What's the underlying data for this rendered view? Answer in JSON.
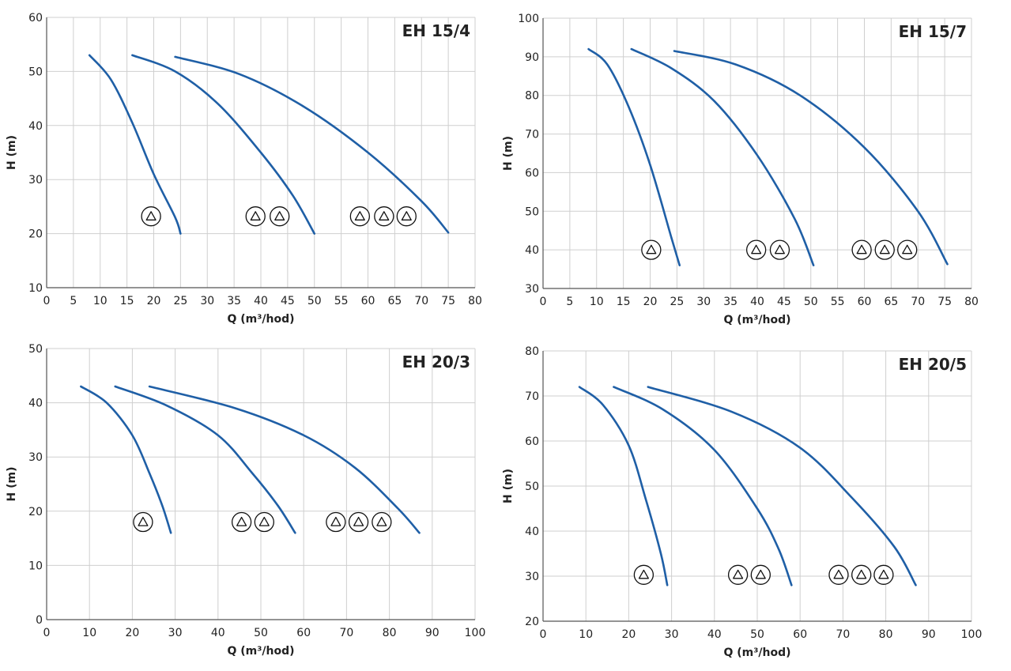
{
  "colors": {
    "curve": "#1f5fa6",
    "grid": "#cfcfcf",
    "axis": "#555555",
    "text": "#222222"
  },
  "icon": "pump-circle-triangle-icon",
  "chart_data": [
    {
      "type": "line",
      "title": "EH 15/4",
      "xlabel": "Q (m³/hod)",
      "ylabel": "H (m)",
      "xlim": [
        0,
        80
      ],
      "ylim": [
        10,
        60
      ],
      "xticks": [
        0,
        5,
        10,
        15,
        20,
        25,
        30,
        35,
        40,
        45,
        50,
        55,
        60,
        65,
        70,
        75,
        80
      ],
      "yticks": [
        10,
        20,
        30,
        40,
        50,
        60
      ],
      "series": [
        {
          "pumps": 1,
          "x": [
            8,
            12,
            16,
            20,
            24,
            25
          ],
          "y": [
            53,
            48.5,
            40.5,
            31,
            23,
            20
          ]
        },
        {
          "pumps": 2,
          "x": [
            16,
            24,
            32,
            40,
            46,
            50
          ],
          "y": [
            53,
            50,
            44,
            35,
            27,
            20
          ]
        },
        {
          "pumps": 3,
          "x": [
            24,
            36,
            48,
            60,
            70,
            75
          ],
          "y": [
            52.7,
            49.5,
            43.5,
            35,
            26,
            20.2
          ]
        }
      ],
      "pump_markers": [
        {
          "count": 1,
          "x": [
            19.5
          ],
          "y": 23.2
        },
        {
          "count": 2,
          "x": [
            39,
            43.5
          ],
          "y": 23.2
        },
        {
          "count": 3,
          "x": [
            58.5,
            63,
            67.2
          ],
          "y": 23.2
        }
      ]
    },
    {
      "type": "line",
      "title": "EH 15/7",
      "xlabel": "Q (m³/hod)",
      "ylabel": "H (m)",
      "xlim": [
        0,
        80
      ],
      "ylim": [
        30,
        100
      ],
      "xticks": [
        0,
        5,
        10,
        15,
        20,
        25,
        30,
        35,
        40,
        45,
        50,
        55,
        60,
        65,
        70,
        75,
        80
      ],
      "yticks": [
        30,
        40,
        50,
        60,
        70,
        80,
        90,
        100
      ],
      "series": [
        {
          "pumps": 1,
          "x": [
            8.5,
            12,
            16,
            20,
            24,
            25.5
          ],
          "y": [
            92,
            88,
            77,
            62,
            43,
            36
          ]
        },
        {
          "pumps": 2,
          "x": [
            16.5,
            24,
            32,
            40,
            47,
            50.5
          ],
          "y": [
            92,
            87,
            78.5,
            64.5,
            48,
            36
          ]
        },
        {
          "pumps": 3,
          "x": [
            24.5,
            36,
            48,
            60,
            70,
            75.5
          ],
          "y": [
            91.5,
            88,
            80,
            66.5,
            50,
            36.3
          ]
        }
      ],
      "pump_markers": [
        {
          "count": 1,
          "x": [
            20.2
          ],
          "y": 40
        },
        {
          "count": 2,
          "x": [
            39.8,
            44.2
          ],
          "y": 40
        },
        {
          "count": 3,
          "x": [
            59.5,
            63.8,
            68
          ],
          "y": 40
        }
      ]
    },
    {
      "type": "line",
      "title": "EH 20/3",
      "xlabel": "Q (m³/hod)",
      "ylabel": "H (m)",
      "xlim": [
        0,
        100
      ],
      "ylim": [
        0,
        50
      ],
      "xticks": [
        0,
        10,
        20,
        30,
        40,
        50,
        60,
        70,
        80,
        90,
        100
      ],
      "yticks": [
        0,
        10,
        20,
        30,
        40,
        50
      ],
      "series": [
        {
          "pumps": 1,
          "x": [
            8,
            14,
            20,
            24,
            27,
            29
          ],
          "y": [
            43,
            40,
            34,
            27,
            21,
            16
          ]
        },
        {
          "pumps": 2,
          "x": [
            16,
            28,
            40,
            48,
            54,
            58
          ],
          "y": [
            43,
            39.5,
            34,
            27,
            21,
            16
          ]
        },
        {
          "pumps": 3,
          "x": [
            24,
            44,
            60,
            72,
            82,
            87
          ],
          "y": [
            43,
            39,
            34,
            28,
            20.5,
            16
          ]
        }
      ],
      "pump_markers": [
        {
          "count": 1,
          "x": [
            22.5
          ],
          "y": 18
        },
        {
          "count": 2,
          "x": [
            45.5,
            50.8
          ],
          "y": 18
        },
        {
          "count": 3,
          "x": [
            67.5,
            72.8,
            78.2
          ],
          "y": 18
        }
      ]
    },
    {
      "type": "line",
      "title": "EH 20/5",
      "xlabel": "Q (m³/hod)",
      "ylabel": "H (m)",
      "xlim": [
        0,
        100
      ],
      "ylim": [
        20,
        80
      ],
      "xticks": [
        0,
        10,
        20,
        30,
        40,
        50,
        60,
        70,
        80,
        90,
        100
      ],
      "yticks": [
        20,
        30,
        40,
        50,
        60,
        70,
        80
      ],
      "series": [
        {
          "pumps": 1,
          "x": [
            8.5,
            14,
            20,
            24,
            27.5,
            29
          ],
          "y": [
            72,
            68,
            59,
            47,
            35,
            28
          ]
        },
        {
          "pumps": 2,
          "x": [
            16.5,
            28,
            40,
            50,
            55,
            58
          ],
          "y": [
            72,
            67,
            58,
            45,
            36,
            28
          ]
        },
        {
          "pumps": 3,
          "x": [
            24.5,
            44,
            60,
            72,
            82,
            87
          ],
          "y": [
            72,
            66.5,
            58.5,
            47.5,
            36.5,
            28
          ]
        }
      ],
      "pump_markers": [
        {
          "count": 1,
          "x": [
            23.5
          ],
          "y": 30.3
        },
        {
          "count": 2,
          "x": [
            45.5,
            50.8
          ],
          "y": 30.3
        },
        {
          "count": 3,
          "x": [
            69,
            74.3,
            79.5
          ],
          "y": 30.3
        }
      ]
    }
  ]
}
